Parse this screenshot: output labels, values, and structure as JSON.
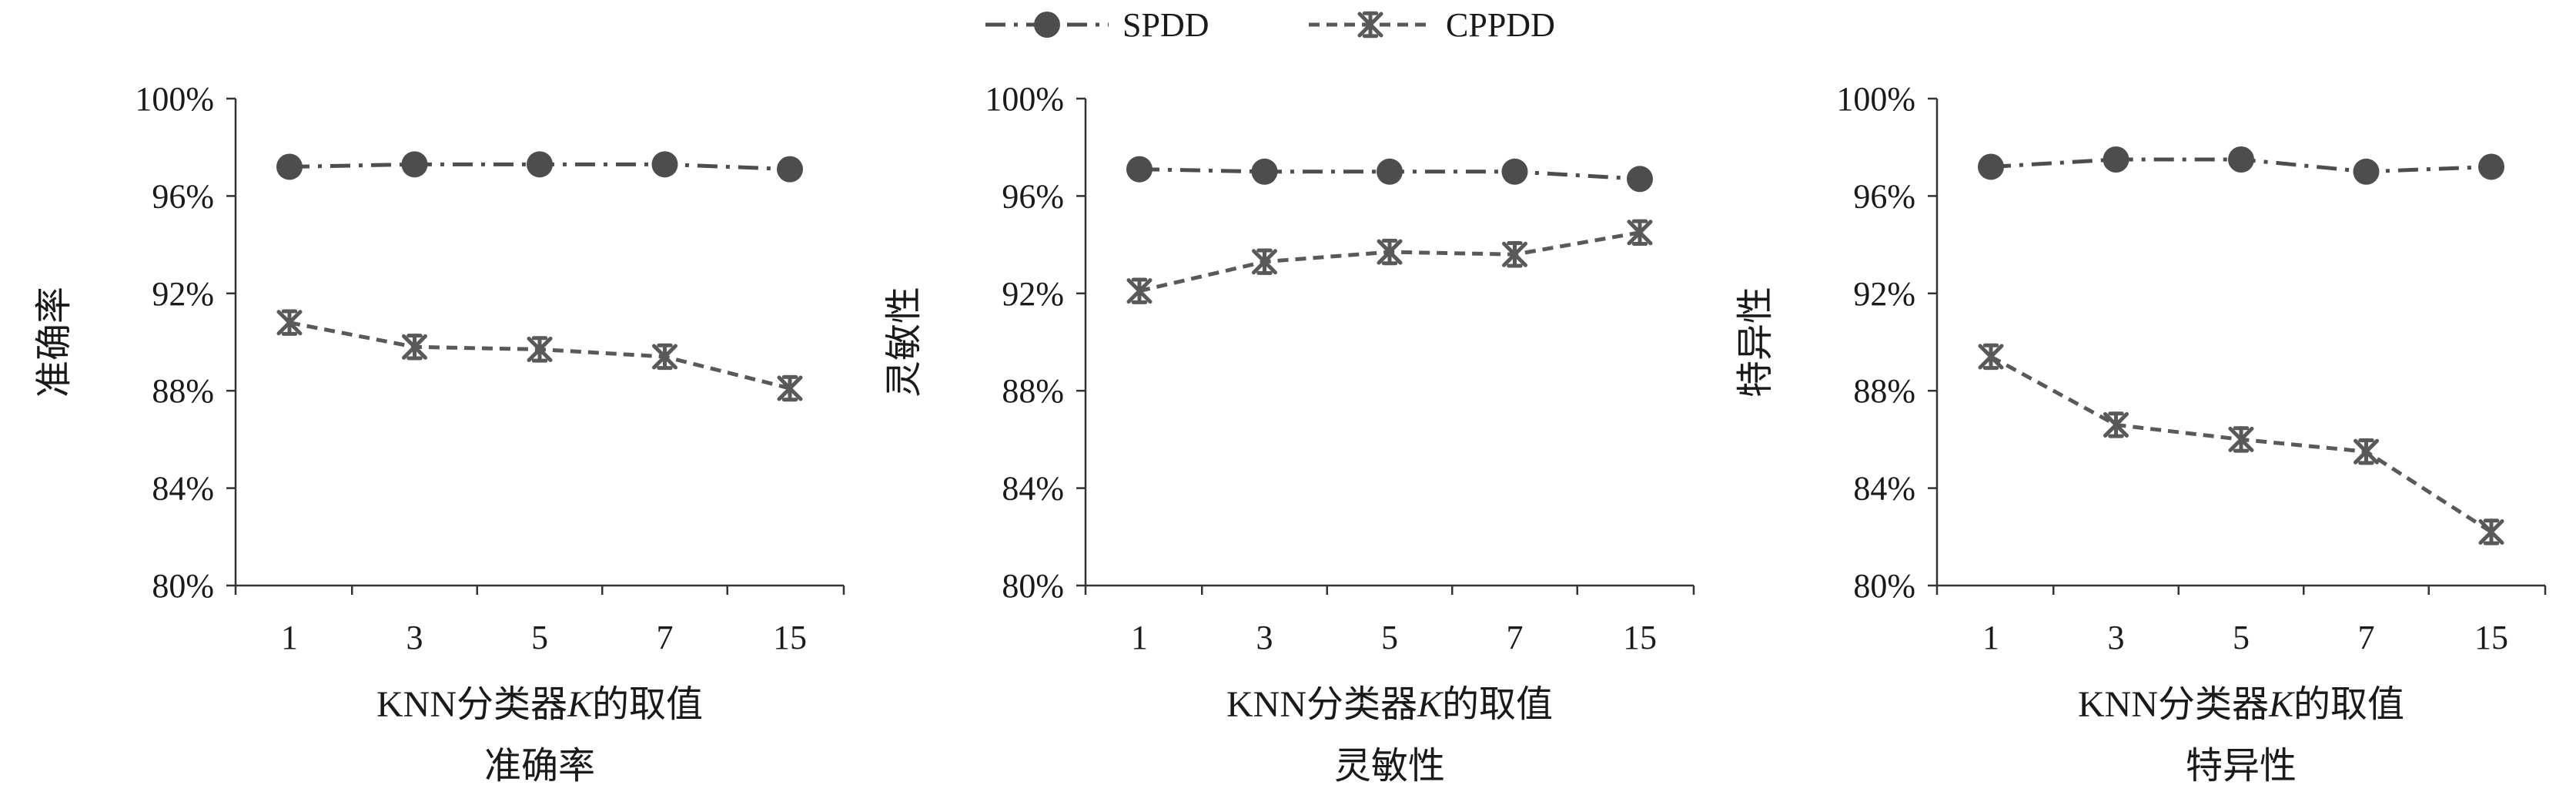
{
  "legend": [
    {
      "name": "SPDD",
      "marker": "circle-marker",
      "color": "#4d4d4d",
      "line_style": "dash-dot"
    },
    {
      "name": "CPPDD",
      "marker": "asterisk-marker",
      "color": "#595959",
      "line_style": "dashed"
    }
  ],
  "chart_data": [
    {
      "type": "line",
      "title": "准确率",
      "xlabel": "KNN分类器K的取值",
      "xlabel_parts": [
        "KNN分类器",
        "K",
        "的取值"
      ],
      "ylabel": "准确率",
      "categories": [
        "1",
        "3",
        "5",
        "7",
        "15"
      ],
      "y_ticks": [
        "80%",
        "84%",
        "88%",
        "92%",
        "96%",
        "100%"
      ],
      "ylim": [
        80,
        100
      ],
      "series": [
        {
          "name": "SPDD",
          "values": [
            97.2,
            97.3,
            97.3,
            97.3,
            97.1
          ]
        },
        {
          "name": "CPPDD",
          "values": [
            90.8,
            89.8,
            89.7,
            89.4,
            88.1
          ]
        }
      ]
    },
    {
      "type": "line",
      "title": "灵敏性",
      "xlabel": "KNN分类器K的取值",
      "xlabel_parts": [
        "KNN分类器",
        "K",
        "的取值"
      ],
      "ylabel": "灵敏性",
      "categories": [
        "1",
        "3",
        "5",
        "7",
        "15"
      ],
      "y_ticks": [
        "80%",
        "84%",
        "88%",
        "92%",
        "96%",
        "100%"
      ],
      "ylim": [
        80,
        100
      ],
      "series": [
        {
          "name": "SPDD",
          "values": [
            97.1,
            97.0,
            97.0,
            97.0,
            96.7
          ]
        },
        {
          "name": "CPPDD",
          "values": [
            92.1,
            93.3,
            93.7,
            93.6,
            94.5
          ]
        }
      ]
    },
    {
      "type": "line",
      "title": "特异性",
      "xlabel": "KNN分类器K的取值",
      "xlabel_parts": [
        "KNN分类器",
        "K",
        "的取值"
      ],
      "ylabel": "特异性",
      "categories": [
        "1",
        "3",
        "5",
        "7",
        "15"
      ],
      "y_ticks": [
        "80%",
        "84%",
        "88%",
        "92%",
        "96%",
        "100%"
      ],
      "ylim": [
        80,
        100
      ],
      "series": [
        {
          "name": "SPDD",
          "values": [
            97.2,
            97.5,
            97.5,
            97.0,
            97.2
          ]
        },
        {
          "name": "CPPDD",
          "values": [
            89.4,
            86.6,
            86.0,
            85.5,
            82.2
          ]
        }
      ]
    }
  ]
}
